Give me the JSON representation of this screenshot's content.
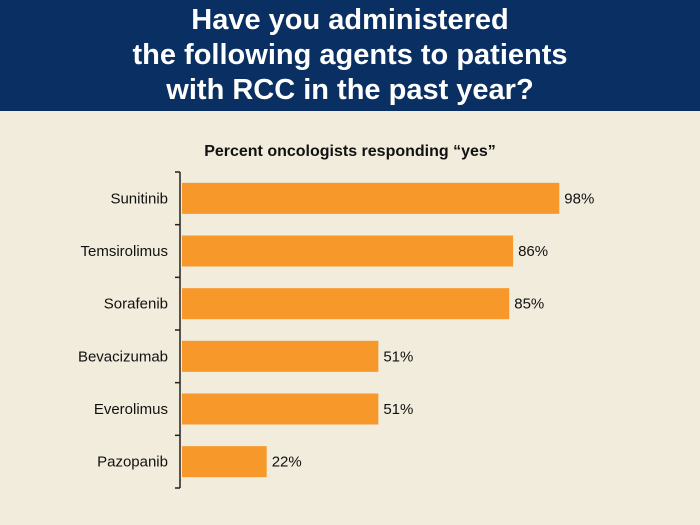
{
  "header": {
    "title": "Have you administered\nthe following agents to patients\nwith RCC in the past year?"
  },
  "colors": {
    "header_bg": "#0a2f62",
    "page_bg": "#f1ecdc",
    "bar": "#f7982a"
  },
  "chart_data": {
    "type": "bar",
    "orientation": "horizontal",
    "subtitle": "Percent oncologists responding “yes”",
    "categories": [
      "Sunitinib",
      "Temsirolimus",
      "Sorafenib",
      "Bevacizumab",
      "Everolimus",
      "Pazopanib"
    ],
    "values": [
      98,
      86,
      85,
      51,
      51,
      22
    ],
    "value_labels": [
      "98%",
      "86%",
      "85%",
      "51%",
      "51%",
      "22%"
    ],
    "xlim": [
      0,
      100
    ],
    "grid": false,
    "legend": "none"
  }
}
